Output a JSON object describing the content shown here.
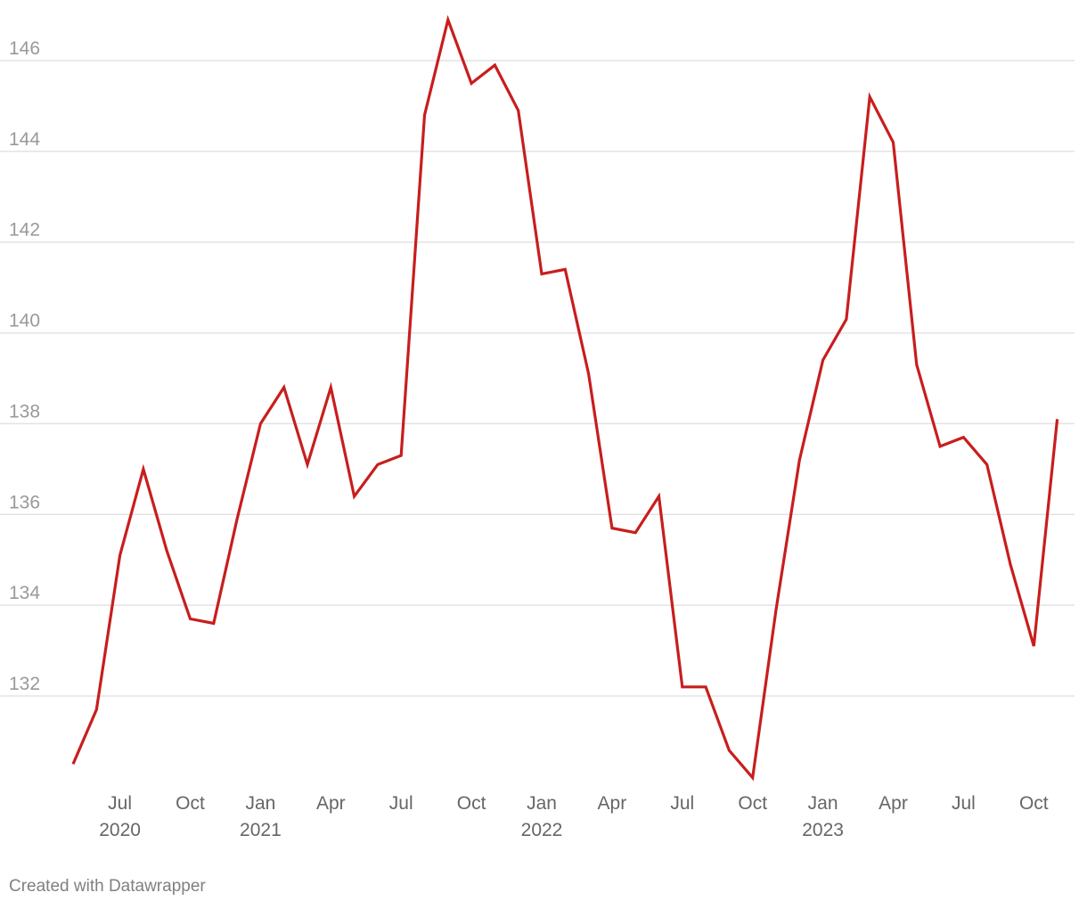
{
  "chart_data": {
    "type": "line",
    "title": "",
    "xlabel": "",
    "ylabel": "",
    "ylim": [
      130,
      147
    ],
    "grid": true,
    "y_ticks": [
      132,
      134,
      136,
      138,
      140,
      142,
      144,
      146
    ],
    "x_ticks": [
      {
        "date": "2020-07",
        "label": "Jul",
        "year": "2020"
      },
      {
        "date": "2020-10",
        "label": "Oct",
        "year": ""
      },
      {
        "date": "2021-01",
        "label": "Jan",
        "year": "2021"
      },
      {
        "date": "2021-04",
        "label": "Apr",
        "year": ""
      },
      {
        "date": "2021-07",
        "label": "Jul",
        "year": ""
      },
      {
        "date": "2021-10",
        "label": "Oct",
        "year": ""
      },
      {
        "date": "2022-01",
        "label": "Jan",
        "year": "2022"
      },
      {
        "date": "2022-04",
        "label": "Apr",
        "year": ""
      },
      {
        "date": "2022-07",
        "label": "Jul",
        "year": ""
      },
      {
        "date": "2022-10",
        "label": "Oct",
        "year": ""
      },
      {
        "date": "2023-01",
        "label": "Jan",
        "year": "2023"
      },
      {
        "date": "2023-04",
        "label": "Apr",
        "year": ""
      },
      {
        "date": "2023-07",
        "label": "Jul",
        "year": ""
      },
      {
        "date": "2023-10",
        "label": "Oct",
        "year": ""
      }
    ],
    "series": [
      {
        "color": "#c71e1d",
        "x": [
          "2020-05",
          "2020-06",
          "2020-07",
          "2020-08",
          "2020-09",
          "2020-10",
          "2020-11",
          "2020-12",
          "2021-01",
          "2021-02",
          "2021-03",
          "2021-04",
          "2021-05",
          "2021-06",
          "2021-07",
          "2021-08",
          "2021-09",
          "2021-10",
          "2021-11",
          "2021-12",
          "2022-01",
          "2022-02",
          "2022-03",
          "2022-04",
          "2022-05",
          "2022-06",
          "2022-07",
          "2022-08",
          "2022-09",
          "2022-10",
          "2022-11",
          "2022-12",
          "2023-01",
          "2023-02",
          "2023-03",
          "2023-04",
          "2023-05",
          "2023-06",
          "2023-07",
          "2023-08",
          "2023-09",
          "2023-10",
          "2023-11"
        ],
        "values": [
          130.5,
          131.7,
          135.1,
          137.0,
          135.2,
          133.7,
          133.6,
          135.9,
          138.0,
          138.8,
          137.1,
          138.8,
          136.4,
          137.1,
          137.3,
          144.8,
          146.9,
          145.5,
          145.9,
          144.9,
          141.3,
          141.4,
          139.1,
          135.7,
          135.6,
          136.4,
          132.2,
          132.2,
          130.8,
          130.2,
          133.9,
          137.2,
          139.4,
          140.3,
          145.2,
          144.2,
          139.3,
          137.5,
          137.7,
          137.1,
          134.9,
          133.1,
          138.1
        ]
      }
    ]
  },
  "footer": {
    "credit": "Created with Datawrapper"
  }
}
